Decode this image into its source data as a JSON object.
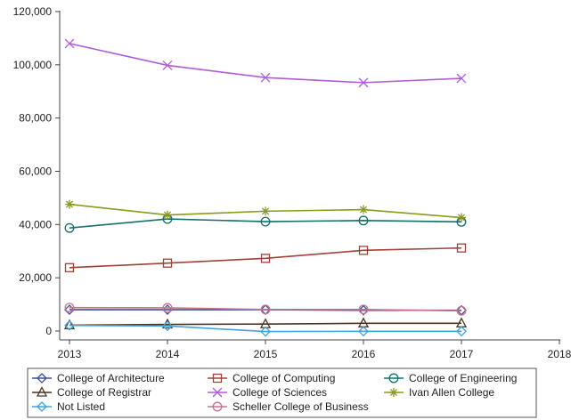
{
  "chart_data": {
    "type": "line",
    "x": [
      2013,
      2014,
      2015,
      2016,
      2017
    ],
    "xlim": [
      2013,
      2018
    ],
    "xticks": [
      "2013",
      "2014",
      "2015",
      "2016",
      "2017",
      "2018"
    ],
    "ylim": [
      0,
      120000
    ],
    "yticks": [
      "0",
      "20,000",
      "40,000",
      "60,000",
      "80,000",
      "100,000",
      "120,000"
    ],
    "grid": false,
    "legend_position": "bottom",
    "series": [
      {
        "name": "College of Architecture",
        "values": [
          8000,
          8000,
          8000,
          7800,
          7800
        ],
        "color": "#3d4e96",
        "marker": "diamond"
      },
      {
        "name": "College of Computing",
        "values": [
          23800,
          25500,
          27300,
          30300,
          31200
        ],
        "color": "#a0413a",
        "marker": "square"
      },
      {
        "name": "College of Engineering",
        "values": [
          38700,
          42100,
          41100,
          41500,
          41000
        ],
        "color": "#15706a",
        "marker": "circle"
      },
      {
        "name": "College of Registrar",
        "values": [
          2200,
          2500,
          2600,
          2900,
          2900
        ],
        "color": "#4a3520",
        "marker": "triangle"
      },
      {
        "name": "College of Sciences",
        "values": [
          108000,
          99800,
          95200,
          93300,
          94900
        ],
        "color": "#b25bd8",
        "marker": "x"
      },
      {
        "name": "Ivan Allen College",
        "values": [
          47600,
          43600,
          45000,
          45600,
          42600
        ],
        "color": "#8a9a1c",
        "marker": "star"
      },
      {
        "name": "Not Listed",
        "values": [
          2100,
          1900,
          -200,
          -100,
          -100
        ],
        "color": "#3fa3e0",
        "marker": "diamond"
      },
      {
        "name": "Scheller College of Business",
        "values": [
          8800,
          8700,
          8100,
          8100,
          7600
        ],
        "color": "#c57391",
        "marker": "circle"
      }
    ]
  }
}
